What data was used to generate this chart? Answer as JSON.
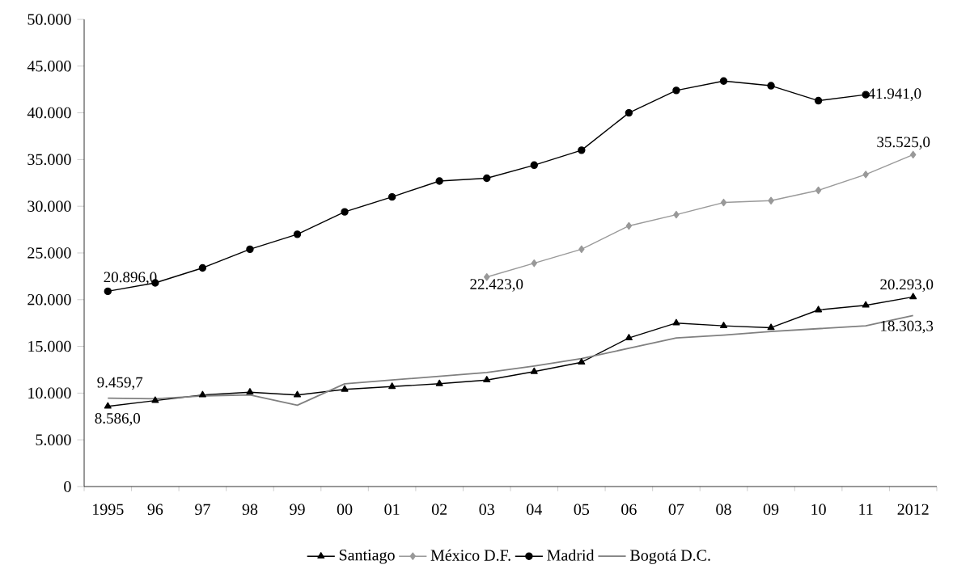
{
  "chart_data": {
    "type": "line",
    "categories": [
      "1995",
      "96",
      "97",
      "98",
      "99",
      "00",
      "01",
      "02",
      "03",
      "04",
      "05",
      "06",
      "07",
      "08",
      "09",
      "10",
      "11",
      "2012"
    ],
    "series": [
      {
        "name": "Santiago",
        "color": "#000000",
        "marker": "triangle",
        "values": [
          8586,
          9200,
          9800,
          10100,
          9800,
          10400,
          10700,
          11000,
          11400,
          12300,
          13300,
          15900,
          17500,
          17200,
          17000,
          18900,
          19400,
          20293
        ]
      },
      {
        "name": "México D.F.",
        "color": "#999999",
        "marker": "diamond",
        "values": [
          null,
          null,
          null,
          null,
          null,
          null,
          null,
          null,
          22423,
          23900,
          25400,
          27900,
          29100,
          30400,
          30600,
          31700,
          33400,
          35525
        ]
      },
      {
        "name": "Madrid",
        "color": "#000000",
        "marker": "circle",
        "values": [
          20896,
          21800,
          23400,
          25400,
          27000,
          29400,
          31000,
          32700,
          33000,
          34400,
          36000,
          40000,
          42400,
          43400,
          42900,
          41300,
          41941,
          null
        ]
      },
      {
        "name": "Bogotá D.C.",
        "color": "#808080",
        "marker": "none",
        "values": [
          9459.7,
          9400,
          9700,
          9800,
          8700,
          11000,
          11400,
          11800,
          12200,
          12900,
          13700,
          14800,
          15900,
          16200,
          16600,
          16900,
          17200,
          18303.3
        ]
      }
    ],
    "ylim": [
      0,
      50000
    ],
    "yticks": [
      0,
      {
        "value": 5000,
        "label": "5.000"
      },
      {
        "value": 10000,
        "label": "10.000"
      },
      {
        "value": 15000,
        "label": "15.000"
      },
      {
        "value": 20000,
        "label": "20.000"
      },
      {
        "value": 25000,
        "label": "25.000"
      },
      {
        "value": 30000,
        "label": "30.000"
      },
      {
        "value": 35000,
        "label": "35.000"
      },
      {
        "value": 40000,
        "label": "40.000"
      },
      {
        "value": 45000,
        "label": "45.000"
      },
      {
        "value": 50000,
        "label": "50.000"
      }
    ],
    "annotations": [
      {
        "text": "20.896,0",
        "x": "1995",
        "y": 20896
      },
      {
        "text": "9.459,7",
        "x": "1995",
        "y": 9459.7
      },
      {
        "text": "8.586,0",
        "x": "1995",
        "y": 8586
      },
      {
        "text": "22.423,0",
        "x": "03",
        "y": 22423
      },
      {
        "text": "41.941,0",
        "x": "11",
        "y": 41941
      },
      {
        "text": "35.525,0",
        "x": "2012",
        "y": 35525
      },
      {
        "text": "20.293,0",
        "x": "2012",
        "y": 20293
      },
      {
        "text": "18.303,3",
        "x": "2012",
        "y": 18303.3
      }
    ],
    "grid": false,
    "legend": "bottom"
  }
}
